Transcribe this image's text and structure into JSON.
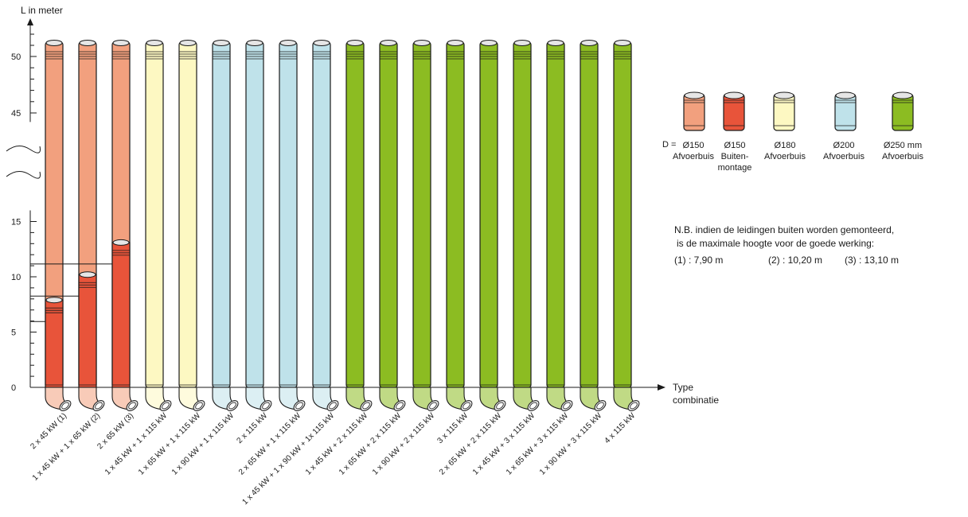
{
  "chart_data": {
    "type": "bar",
    "ylabel": "L in meter",
    "xlabel_lines": [
      "Type",
      "combinatie"
    ],
    "y_ticks": [
      "0",
      "5",
      "10",
      "15",
      "45",
      "50"
    ],
    "axis_break": true,
    "ylim": [
      0,
      50
    ],
    "categories": [
      "2 x 45 kW (1)",
      "1 x 45 kW + 1 x 65 kW (2)",
      "2 x 65 kW (3)",
      "1 x 45 kW + 1 x 115 kW",
      "1 x 65 kW + 1 x 115 kW",
      "1 x 90 kW + 1 x 115 kW",
      "2 x 115 kW",
      "2 x 65 kW + 1 x 115 kW",
      "1 x 45 kW + 1 x 90 kW + 1x 115 kW",
      "1 x 45 kW + 2 x 115 kW",
      "1 x 65 kW + 2 x 115 kW",
      "1 x 90 kW + 2 x 115 kW",
      "3 x 115 kW",
      "2 x 65 kW + 2 x 115 kW",
      "1 x 45 kW + 3 x 115 kW",
      "1 x 65 kW + 3 x 115 kW",
      "1 x 90 kW + 3 x 115 kW",
      "4 x 115 kW"
    ],
    "values": [
      50,
      50,
      50,
      50,
      50,
      50,
      50,
      50,
      50,
      50,
      50,
      50,
      50,
      50,
      50,
      50,
      50,
      50
    ],
    "pipe_type": [
      "D150",
      "D150",
      "D150",
      "D180",
      "D180",
      "D200",
      "D200",
      "D200",
      "D200",
      "D250",
      "D250",
      "D250",
      "D250",
      "D250",
      "D250",
      "D250",
      "D250",
      "D250"
    ],
    "outdoor_heights": [
      7.9,
      10.2,
      13.1,
      null,
      null,
      null,
      null,
      null,
      null,
      null,
      null,
      null,
      null,
      null,
      null,
      null,
      null,
      null
    ],
    "legend": {
      "prefix": "D =",
      "items": [
        {
          "key": "D150",
          "line1": "Ø150",
          "line2": "Afvoerbuis",
          "line3": "",
          "color": "#f2a07e"
        },
        {
          "key": "D150B",
          "line1": "Ø150",
          "line2": "Buiten-",
          "line3": "montage",
          "color": "#e8543a"
        },
        {
          "key": "D180",
          "line1": "Ø180",
          "line2": "Afvoerbuis",
          "line3": "",
          "color": "#fdf8c2"
        },
        {
          "key": "D200",
          "line1": "Ø200",
          "line2": "Afvoerbuis",
          "line3": "",
          "color": "#bfe2ea"
        },
        {
          "key": "D250",
          "line1": "Ø250 mm",
          "line2": "Afvoerbuis",
          "line3": "",
          "color": "#8cbc22"
        }
      ]
    },
    "colors": {
      "D150": "#f2a07e",
      "D150B": "#e8543a",
      "D180": "#fdf8c2",
      "D200": "#bfe2ea",
      "D250": "#8cbc22",
      "outline": "#1a1a1a"
    }
  },
  "note": {
    "line1": "N.B. indien de leidingen buiten worden gemonteerd,",
    "line2": "is de maximale hoogte voor de goede werking:",
    "line3a": "(1) : 7,90 m",
    "line3b": "(2) : 10,20 m",
    "line3c": "(3) : 13,10 m"
  }
}
